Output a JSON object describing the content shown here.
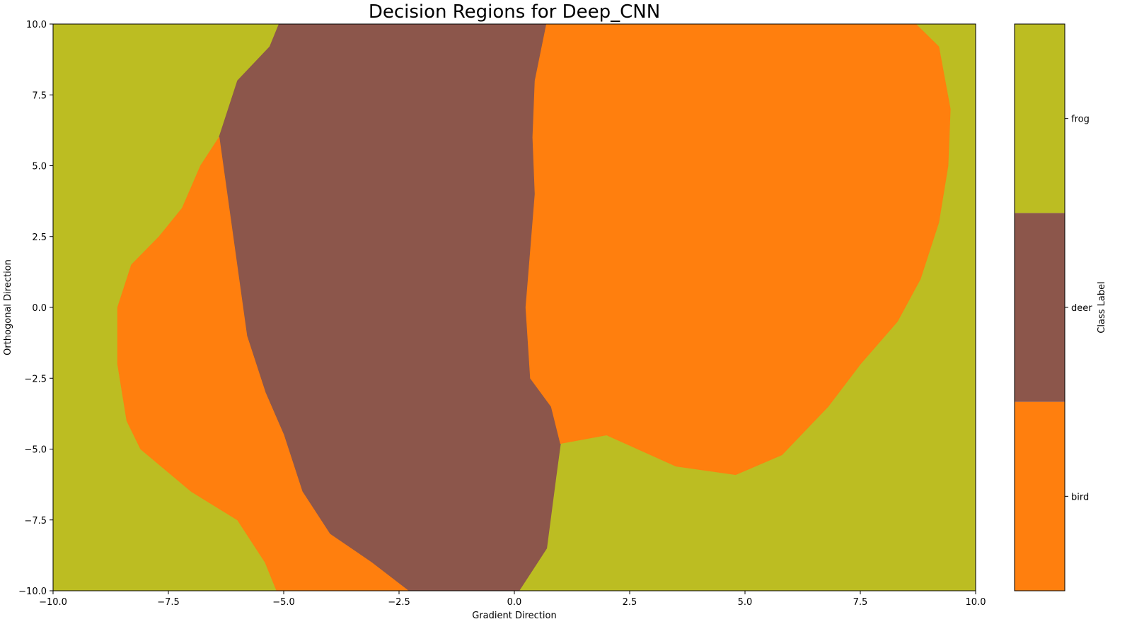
{
  "chart_data": {
    "type": "heatmap",
    "title": "Decision Regions for Deep_CNN",
    "xlabel": "Gradient Direction",
    "ylabel": "Orthogonal Direction",
    "xlim": [
      -10.0,
      10.0
    ],
    "ylim": [
      -10.0,
      10.0
    ],
    "x_ticks": [
      -10.0,
      -7.5,
      -5.0,
      -2.5,
      0.0,
      2.5,
      5.0,
      7.5,
      10.0
    ],
    "y_ticks": [
      -10.0,
      -7.5,
      -5.0,
      -2.5,
      0.0,
      2.5,
      5.0,
      7.5,
      10.0
    ],
    "x_tick_labels": [
      "−10.0",
      "−7.5",
      "−5.0",
      "−2.5",
      "0.0",
      "2.5",
      "5.0",
      "7.5",
      "10.0"
    ],
    "y_tick_labels": [
      "−10.0",
      "−7.5",
      "−5.0",
      "−2.5",
      "0.0",
      "2.5",
      "5.0",
      "7.5",
      "10.0"
    ],
    "background_class": "frog",
    "classes": [
      {
        "name": "bird",
        "color": "#ff7f0e"
      },
      {
        "name": "deer",
        "color": "#8c564b"
      },
      {
        "name": "frog",
        "color": "#bcbd22"
      }
    ],
    "regions": [
      {
        "class": "deer",
        "boundary": [
          [
            -5.1,
            10.0
          ],
          [
            0.7,
            10.0
          ],
          [
            0.45,
            8.0
          ],
          [
            0.4,
            6.0
          ],
          [
            0.45,
            4.0
          ],
          [
            0.3,
            1.0
          ],
          [
            0.25,
            0.0
          ],
          [
            0.35,
            -2.5
          ],
          [
            0.8,
            -3.5
          ],
          [
            1.0,
            -4.8
          ],
          [
            0.9,
            -6.0
          ],
          [
            0.7,
            -8.5
          ],
          [
            0.1,
            -10.0
          ],
          [
            -2.3,
            -10.0
          ],
          [
            -3.1,
            -9.0
          ],
          [
            -4.0,
            -8.0
          ],
          [
            -4.6,
            -6.5
          ],
          [
            -5.0,
            -4.5
          ],
          [
            -5.4,
            -3.0
          ],
          [
            -5.8,
            -1.0
          ],
          [
            -6.1,
            2.5
          ],
          [
            -6.4,
            6.0
          ],
          [
            -6.0,
            8.0
          ],
          [
            -5.3,
            9.2
          ]
        ]
      },
      {
        "class": "bird",
        "boundary": [
          [
            -6.4,
            6.0
          ],
          [
            -6.1,
            2.5
          ],
          [
            -5.8,
            -1.0
          ],
          [
            -5.4,
            -3.0
          ],
          [
            -5.0,
            -4.5
          ],
          [
            -4.6,
            -6.5
          ],
          [
            -4.0,
            -8.0
          ],
          [
            -3.1,
            -9.0
          ],
          [
            -2.3,
            -10.0
          ],
          [
            -5.15,
            -10.0
          ],
          [
            -5.4,
            -9.0
          ],
          [
            -6.0,
            -7.5
          ],
          [
            -7.0,
            -6.5
          ],
          [
            -8.1,
            -5.0
          ],
          [
            -8.4,
            -4.0
          ],
          [
            -8.6,
            -2.0
          ],
          [
            -8.6,
            0.0
          ],
          [
            -8.3,
            1.5
          ],
          [
            -7.7,
            2.5
          ],
          [
            -7.2,
            3.5
          ],
          [
            -6.8,
            5.0
          ]
        ]
      },
      {
        "class": "bird",
        "boundary": [
          [
            0.7,
            10.0
          ],
          [
            8.7,
            10.0
          ],
          [
            9.2,
            9.2
          ],
          [
            9.45,
            7.0
          ],
          [
            9.4,
            5.0
          ],
          [
            9.2,
            3.0
          ],
          [
            8.8,
            1.0
          ],
          [
            8.3,
            -0.5
          ],
          [
            7.5,
            -2.0
          ],
          [
            6.8,
            -3.5
          ],
          [
            5.8,
            -5.2
          ],
          [
            4.8,
            -5.9
          ],
          [
            3.5,
            -5.6
          ],
          [
            2.0,
            -4.5
          ],
          [
            1.0,
            -4.8
          ],
          [
            0.8,
            -3.5
          ],
          [
            0.35,
            -2.5
          ],
          [
            0.25,
            0.0
          ],
          [
            0.3,
            1.0
          ],
          [
            0.45,
            4.0
          ],
          [
            0.4,
            6.0
          ],
          [
            0.45,
            8.0
          ]
        ]
      }
    ],
    "colorbar": {
      "label": "Class Label",
      "ticks": [
        "bird",
        "deer",
        "frog"
      ]
    }
  }
}
